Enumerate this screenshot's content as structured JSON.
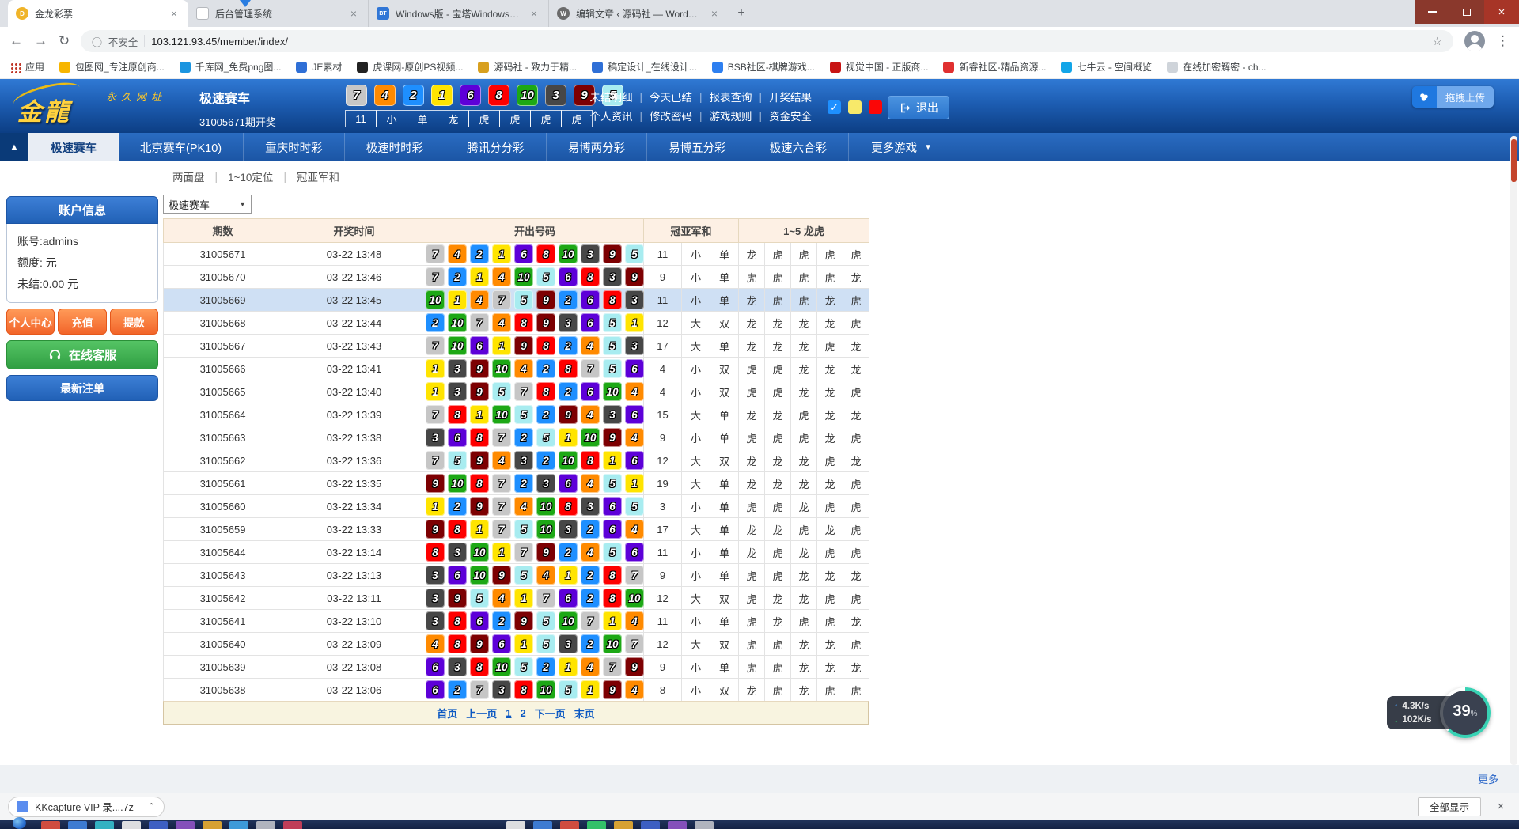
{
  "colors": {
    "ball": {
      "1": "#ffe400",
      "2": "#1e8fff",
      "3": "#474747",
      "4": "#ff8a00",
      "5": "#a8ecf0",
      "6": "#5d00d8",
      "7": "#c6c6c6",
      "8": "#fe0000",
      "9": "#7d0002",
      "10": "#1da815"
    },
    "red_text": "#e02a1e",
    "dark_text": "#333a52",
    "header_blue": "#1d5db2",
    "highlight_row": "#cfe0f4",
    "check_blue": "#1e90ff",
    "check_yellow": "#f7e96a",
    "check_red": "#fb0707"
  },
  "icons": {
    "back": "←",
    "forward": "→",
    "reload": "↻",
    "info": "ⓘ",
    "star": "☆",
    "menu": "⋮",
    "caret_down": "▼",
    "caret_up": "▲",
    "close": "×",
    "plus": "+",
    "check": "✓",
    "chevron_up": "⌃",
    "up_arrow": "↑",
    "down_arrow": "↓",
    "pipe": "|"
  },
  "browser": {
    "tabs": [
      {
        "title": "金龙彩票",
        "favicon": "gold-coin",
        "color": "#f0b429",
        "initial": "D",
        "shape": "circle"
      },
      {
        "title": "后台管理系统",
        "favicon": "document",
        "color": "#ffffff",
        "initial": "",
        "shape": "square",
        "border": true
      },
      {
        "title": "Windows版 - 宝塔Windows面板",
        "favicon": "bt-panel",
        "color": "#3076d6",
        "initial": "BT",
        "shape": "square"
      },
      {
        "title": "编辑文章 ‹ 源码社 — WordPress",
        "favicon": "wordpress",
        "color": "#6b6b6b",
        "initial": "W",
        "shape": "circle"
      }
    ],
    "security": "不安全",
    "url": "103.121.93.45/member/index/",
    "bookmarks": [
      {
        "label": "应用",
        "icon": "apps-grid",
        "color": ""
      },
      {
        "label": "包图网_专注原创商...",
        "icon": "site",
        "color": "#f7b500"
      },
      {
        "label": "千库网_免费png图...",
        "icon": "site",
        "color": "#1b95e0"
      },
      {
        "label": "JE素材",
        "icon": "site",
        "color": "#2f6fd6"
      },
      {
        "label": "虎课网-原创PS视频...",
        "icon": "site",
        "color": "#222222"
      },
      {
        "label": "源码社 - 致力于精...",
        "icon": "site",
        "color": "#d8a01f"
      },
      {
        "label": "稿定设计_在线设计...",
        "icon": "site",
        "color": "#2f6fd6"
      },
      {
        "label": "BSB社区-棋牌游戏...",
        "icon": "site",
        "color": "#2d7ff0"
      },
      {
        "label": "视觉中国 - 正版商...",
        "icon": "site",
        "color": "#c81414"
      },
      {
        "label": "新睿社区-精品资源...",
        "icon": "site",
        "color": "#e03030"
      },
      {
        "label": "七牛云 - 空间概览",
        "icon": "site",
        "color": "#12a5e8"
      },
      {
        "label": "在线加密解密 - ch...",
        "icon": "site",
        "color": "#cfd4da"
      }
    ]
  },
  "header": {
    "logo_text": "金龍",
    "logo_sub": "永久网址",
    "game_name": "极速赛车",
    "issue_drawing": "31005671期开奖",
    "numbers": [
      7,
      4,
      2,
      1,
      6,
      8,
      10,
      3,
      9,
      5
    ],
    "summary": [
      "11",
      "小",
      "单",
      "龙",
      "虎",
      "虎",
      "虎",
      "虎"
    ],
    "menu_top": [
      "未结明细",
      "今天已结",
      "报表查询",
      "开奖结果"
    ],
    "menu_bottom": [
      "个人资讯",
      "修改密码",
      "游戏规则",
      "资金安全"
    ],
    "logout": "退出",
    "upload": "拖拽上传"
  },
  "nav": {
    "tabs": [
      "极速赛车",
      "北京赛车(PK10)",
      "重庆时时彩",
      "极速时时彩",
      "腾讯分分彩",
      "易博两分彩",
      "易博五分彩",
      "极速六合彩"
    ],
    "active_index": 0,
    "more": "更多游戏"
  },
  "subnav": [
    "两面盘",
    "1~10定位",
    "冠亚军和"
  ],
  "sidebar": {
    "title": "账户信息",
    "info": [
      "账号:admins",
      "额度: 元",
      "未结:0.00 元"
    ],
    "actions": [
      "个人中心",
      "充值",
      "提款"
    ],
    "service": "在线客服",
    "orders": "最新注单"
  },
  "table": {
    "filter_value": "极速赛车",
    "headers": {
      "issue": "期数",
      "time": "开奖时间",
      "numbers": "开出号码",
      "sum": "冠亚军和",
      "dt": "1~5 龙虎"
    },
    "highlight_issue": "31005669",
    "rows": [
      {
        "issue": "31005671",
        "time": "03-22 13:48",
        "nums": [
          7,
          4,
          2,
          1,
          6,
          8,
          10,
          3,
          9,
          5
        ],
        "sum": "11",
        "size": "小",
        "parity": "单",
        "dt": [
          "龙",
          "虎",
          "虎",
          "虎",
          "虎"
        ]
      },
      {
        "issue": "31005670",
        "time": "03-22 13:46",
        "nums": [
          7,
          2,
          1,
          4,
          10,
          5,
          6,
          8,
          3,
          9
        ],
        "sum": "9",
        "size": "小",
        "parity": "单",
        "dt": [
          "虎",
          "虎",
          "虎",
          "虎",
          "龙"
        ]
      },
      {
        "issue": "31005669",
        "time": "03-22 13:45",
        "nums": [
          10,
          1,
          4,
          7,
          5,
          9,
          2,
          6,
          8,
          3
        ],
        "sum": "11",
        "size": "小",
        "parity": "单",
        "dt": [
          "龙",
          "虎",
          "虎",
          "龙",
          "虎"
        ]
      },
      {
        "issue": "31005668",
        "time": "03-22 13:44",
        "nums": [
          2,
          10,
          7,
          4,
          8,
          9,
          3,
          6,
          5,
          1
        ],
        "sum": "12",
        "size": "大",
        "parity": "双",
        "dt": [
          "龙",
          "龙",
          "龙",
          "龙",
          "虎"
        ]
      },
      {
        "issue": "31005667",
        "time": "03-22 13:43",
        "nums": [
          7,
          10,
          6,
          1,
          9,
          8,
          2,
          4,
          5,
          3
        ],
        "sum": "17",
        "size": "大",
        "parity": "单",
        "dt": [
          "龙",
          "龙",
          "龙",
          "虎",
          "龙"
        ]
      },
      {
        "issue": "31005666",
        "time": "03-22 13:41",
        "nums": [
          1,
          3,
          9,
          10,
          4,
          2,
          8,
          7,
          5,
          6
        ],
        "sum": "4",
        "size": "小",
        "parity": "双",
        "dt": [
          "虎",
          "虎",
          "龙",
          "龙",
          "龙"
        ]
      },
      {
        "issue": "31005665",
        "time": "03-22 13:40",
        "nums": [
          1,
          3,
          9,
          5,
          7,
          8,
          2,
          6,
          10,
          4
        ],
        "sum": "4",
        "size": "小",
        "parity": "双",
        "dt": [
          "虎",
          "虎",
          "龙",
          "龙",
          "虎"
        ]
      },
      {
        "issue": "31005664",
        "time": "03-22 13:39",
        "nums": [
          7,
          8,
          1,
          10,
          5,
          2,
          9,
          4,
          3,
          6
        ],
        "sum": "15",
        "size": "大",
        "parity": "单",
        "dt": [
          "龙",
          "龙",
          "虎",
          "龙",
          "龙"
        ]
      },
      {
        "issue": "31005663",
        "time": "03-22 13:38",
        "nums": [
          3,
          6,
          8,
          7,
          2,
          5,
          1,
          10,
          9,
          4
        ],
        "sum": "9",
        "size": "小",
        "parity": "单",
        "dt": [
          "虎",
          "虎",
          "虎",
          "龙",
          "虎"
        ]
      },
      {
        "issue": "31005662",
        "time": "03-22 13:36",
        "nums": [
          7,
          5,
          9,
          4,
          3,
          2,
          10,
          8,
          1,
          6
        ],
        "sum": "12",
        "size": "大",
        "parity": "双",
        "dt": [
          "龙",
          "龙",
          "龙",
          "虎",
          "龙"
        ]
      },
      {
        "issue": "31005661",
        "time": "03-22 13:35",
        "nums": [
          9,
          10,
          8,
          7,
          2,
          3,
          6,
          4,
          5,
          1
        ],
        "sum": "19",
        "size": "大",
        "parity": "单",
        "dt": [
          "龙",
          "龙",
          "龙",
          "龙",
          "虎"
        ]
      },
      {
        "issue": "31005660",
        "time": "03-22 13:34",
        "nums": [
          1,
          2,
          9,
          7,
          4,
          10,
          8,
          3,
          6,
          5
        ],
        "sum": "3",
        "size": "小",
        "parity": "单",
        "dt": [
          "虎",
          "虎",
          "龙",
          "虎",
          "虎"
        ]
      },
      {
        "issue": "31005659",
        "time": "03-22 13:33",
        "nums": [
          9,
          8,
          1,
          7,
          5,
          10,
          3,
          2,
          6,
          4
        ],
        "sum": "17",
        "size": "大",
        "parity": "单",
        "dt": [
          "龙",
          "龙",
          "虎",
          "龙",
          "虎"
        ]
      },
      {
        "issue": "31005644",
        "time": "03-22 13:14",
        "nums": [
          8,
          3,
          10,
          1,
          7,
          9,
          2,
          4,
          5,
          6
        ],
        "sum": "11",
        "size": "小",
        "parity": "单",
        "dt": [
          "龙",
          "虎",
          "龙",
          "虎",
          "虎"
        ]
      },
      {
        "issue": "31005643",
        "time": "03-22 13:13",
        "nums": [
          3,
          6,
          10,
          9,
          5,
          4,
          1,
          2,
          8,
          7
        ],
        "sum": "9",
        "size": "小",
        "parity": "单",
        "dt": [
          "虎",
          "虎",
          "龙",
          "龙",
          "龙"
        ]
      },
      {
        "issue": "31005642",
        "time": "03-22 13:11",
        "nums": [
          3,
          9,
          5,
          4,
          1,
          7,
          6,
          2,
          8,
          10
        ],
        "sum": "12",
        "size": "大",
        "parity": "双",
        "dt": [
          "虎",
          "龙",
          "龙",
          "虎",
          "虎"
        ]
      },
      {
        "issue": "31005641",
        "time": "03-22 13:10",
        "nums": [
          3,
          8,
          6,
          2,
          9,
          5,
          10,
          7,
          1,
          4
        ],
        "sum": "11",
        "size": "小",
        "parity": "单",
        "dt": [
          "虎",
          "龙",
          "虎",
          "虎",
          "龙"
        ]
      },
      {
        "issue": "31005640",
        "time": "03-22 13:09",
        "nums": [
          4,
          8,
          9,
          6,
          1,
          5,
          3,
          2,
          10,
          7
        ],
        "sum": "12",
        "size": "大",
        "parity": "双",
        "dt": [
          "虎",
          "虎",
          "龙",
          "龙",
          "虎"
        ]
      },
      {
        "issue": "31005639",
        "time": "03-22 13:08",
        "nums": [
          6,
          3,
          8,
          10,
          5,
          2,
          1,
          4,
          7,
          9
        ],
        "sum": "9",
        "size": "小",
        "parity": "单",
        "dt": [
          "虎",
          "虎",
          "龙",
          "龙",
          "龙"
        ]
      },
      {
        "issue": "31005638",
        "time": "03-22 13:06",
        "nums": [
          6,
          2,
          7,
          3,
          8,
          10,
          5,
          1,
          9,
          4
        ],
        "sum": "8",
        "size": "小",
        "parity": "双",
        "dt": [
          "龙",
          "虎",
          "龙",
          "虎",
          "虎"
        ]
      }
    ],
    "pagination": [
      "首页",
      "上一页",
      "1",
      "2",
      "下一页",
      "末页"
    ],
    "current_page": "1"
  },
  "footer": {
    "more": "更多"
  },
  "downloads": {
    "file": "KKcapture VIP 录....7z",
    "show_all": "全部显示"
  },
  "net_overlay": {
    "up": "4.3K/s",
    "down": "102K/s",
    "percent": "39",
    "unit": "%"
  }
}
